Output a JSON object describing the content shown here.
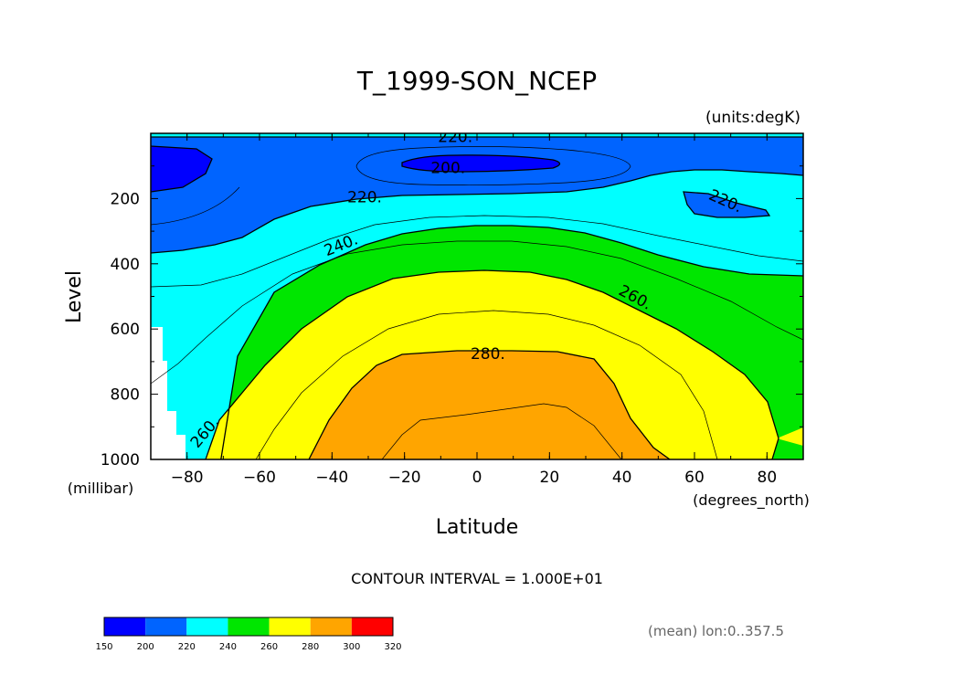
{
  "chart_data": {
    "type": "contour",
    "title": "T_1999-SON_NCEP",
    "units_label": "(units:degK)",
    "xlabel": "Latitude",
    "xunits": "(degrees_north)",
    "ylabel": "Level",
    "yunits": "(millibar)",
    "xlim": [
      -90,
      90
    ],
    "ylim": [
      0,
      1000
    ],
    "xticks": [
      -80,
      -60,
      -40,
      -20,
      0,
      20,
      40,
      60,
      80
    ],
    "yticks": [
      200,
      400,
      600,
      800,
      1000
    ],
    "contour_interval_text": "CONTOUR INTERVAL = 1.000E+01",
    "footnote": "(mean) lon:0..357.5",
    "colorbar": {
      "bounds": [
        150,
        200,
        220,
        240,
        260,
        280,
        300,
        320
      ],
      "colors": [
        "#0000ff",
        "#0064ff",
        "#00ffff",
        "#00e600",
        "#ffff00",
        "#ffa500",
        "#ff0000"
      ]
    },
    "contour_labels": [
      {
        "text": "220.",
        "lat": -6,
        "lev": 10
      },
      {
        "text": "200.",
        "lat": -8,
        "lev": 105
      },
      {
        "text": "220.",
        "lat": -31,
        "lev": 195
      },
      {
        "text": "220.",
        "lat": 68,
        "lev": 205
      },
      {
        "text": "240.",
        "lat": -37,
        "lev": 340
      },
      {
        "text": "260.",
        "lat": 43,
        "lev": 500
      },
      {
        "text": "280.",
        "lat": 3,
        "lev": 675
      },
      {
        "text": "260.",
        "lat": -74,
        "lev": 910
      }
    ]
  }
}
